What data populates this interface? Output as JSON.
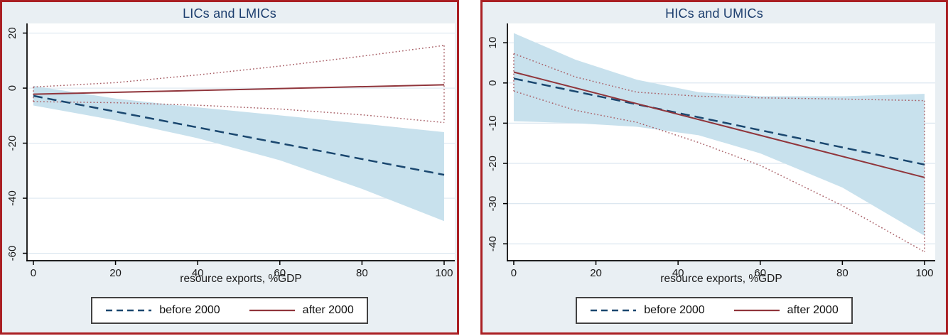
{
  "figure": {
    "description": "Two-panel Stata-style linear prediction plot of growth effect vs resource exports, before vs after 2000, with 95% confidence regions",
    "panel_border_color": "#aa1f23",
    "panel_background": "#e9eff3",
    "plot_background": "#ffffff",
    "grid_color": "#dce7f0",
    "axis_color": "#000000",
    "tick_label_color": "#1a1a1a",
    "title_color": "#1c3e6e"
  },
  "legend": {
    "before_label": "before 2000",
    "after_label": "after 2000",
    "before_color": "#1a476f",
    "after_color": "#90353b",
    "position": "bottom"
  },
  "chart_data": [
    {
      "type": "line",
      "title": "LICs and LMICs",
      "xlabel": "resource exports, %GDP",
      "ylabel": "",
      "xlim": [
        -1.55,
        102.6
      ],
      "ylim": [
        -62.7,
        23.5
      ],
      "xticks": [
        0,
        20,
        40,
        60,
        80,
        100
      ],
      "yticks": [
        20,
        0,
        -20,
        -40,
        -60
      ],
      "grid": true,
      "bands": [
        {
          "name": "before 2000 95% CI",
          "color": "#c8e1ed",
          "x": [
            0,
            20,
            40,
            60,
            80,
            100
          ],
          "upper": [
            0.8,
            -3.8,
            -7.0,
            -9.9,
            -12.9,
            -16.0
          ],
          "lower": [
            -6.3,
            -11.7,
            -18.2,
            -26.2,
            -36.6,
            -48.3
          ]
        }
      ],
      "ci_lines": [
        {
          "name": "after 2000 95% CI",
          "style": "dotted",
          "color": "#a85f66",
          "x": [
            0,
            20,
            40,
            60,
            80,
            100
          ],
          "upper": [
            0.4,
            2.0,
            4.8,
            8.0,
            11.6,
            15.5
          ],
          "lower": [
            -4.9,
            -5.3,
            -6.2,
            -7.6,
            -9.7,
            -12.5
          ]
        }
      ],
      "series": [
        {
          "name": "before 2000",
          "style": "dashed",
          "color": "#1a476f",
          "x": [
            0,
            100
          ],
          "y": [
            -2.8,
            -31.5
          ]
        },
        {
          "name": "after 2000",
          "style": "solid",
          "color": "#90353b",
          "x": [
            0,
            100
          ],
          "y": [
            -2.2,
            1.2
          ]
        }
      ]
    },
    {
      "type": "line",
      "title": "HICs and UMICs",
      "xlabel": "resource exports, %GDP",
      "ylabel": "",
      "xlim": [
        -1.55,
        102.6
      ],
      "ylim": [
        -44.2,
        14.8
      ],
      "xticks": [
        0,
        20,
        40,
        60,
        80,
        100
      ],
      "yticks": [
        10,
        0,
        -10,
        -20,
        -30,
        -40
      ],
      "grid": true,
      "bands": [
        {
          "name": "before 2000 95% CI",
          "color": "#c8e1ed",
          "x": [
            0,
            15,
            30,
            45,
            60,
            80,
            100
          ],
          "upper": [
            12.4,
            5.8,
            0.8,
            -2.3,
            -3.3,
            -3.3,
            -2.7
          ],
          "lower": [
            -9.5,
            -10.0,
            -10.9,
            -13.0,
            -17.5,
            -26.0,
            -38.0
          ]
        }
      ],
      "ci_lines": [
        {
          "name": "after 2000 95% CI",
          "style": "dotted",
          "color": "#a85f66",
          "x": [
            0,
            15,
            30,
            45,
            60,
            80,
            100
          ],
          "upper": [
            7.3,
            1.5,
            -2.3,
            -3.3,
            -3.7,
            -4.0,
            -4.4
          ],
          "lower": [
            -2.0,
            -6.8,
            -9.8,
            -14.8,
            -20.5,
            -30.5,
            -42.0
          ]
        }
      ],
      "series": [
        {
          "name": "before 2000",
          "style": "dashed",
          "color": "#1a476f",
          "x": [
            0,
            100
          ],
          "y": [
            1.1,
            -20.3
          ]
        },
        {
          "name": "after 2000",
          "style": "solid",
          "color": "#90353b",
          "x": [
            0,
            100
          ],
          "y": [
            2.7,
            -23.5
          ]
        }
      ]
    }
  ]
}
